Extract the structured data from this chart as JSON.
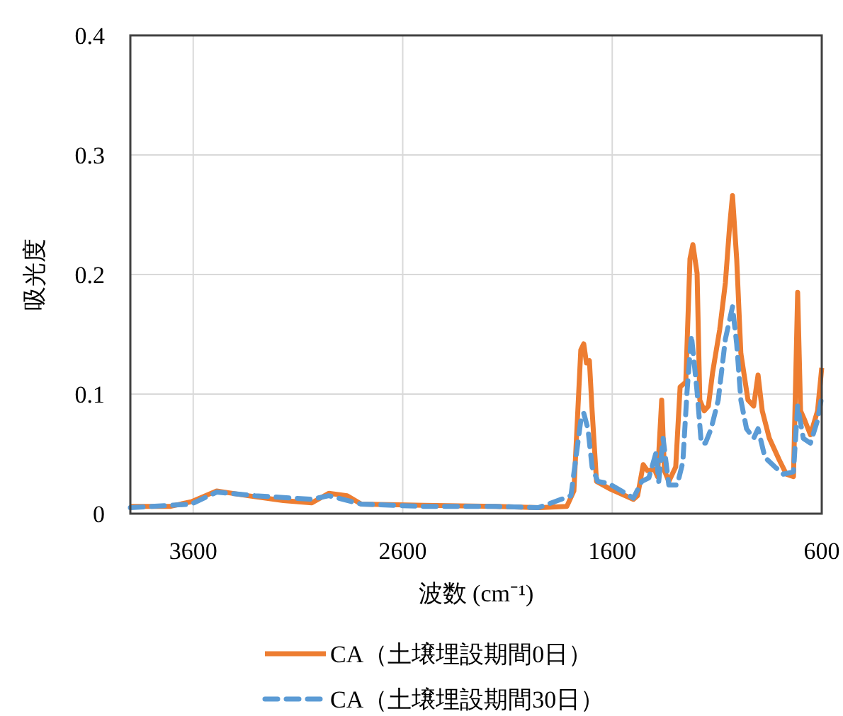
{
  "chart_data": {
    "type": "line",
    "xlabel": "波数 (cm⁻¹)",
    "ylabel": "吸光度",
    "xlim": [
      3900,
      600
    ],
    "xticks": [
      3600,
      2600,
      1600,
      600
    ],
    "ylim": [
      0,
      0.4
    ],
    "yticks": [
      0,
      0.1,
      0.2,
      0.3,
      0.4
    ],
    "grid": true,
    "legend": "bottom",
    "series": [
      {
        "name": "CA（土壌埋設期間0日）",
        "color": "#ed7d31",
        "line_style": "solid",
        "x": [
          3900,
          3711,
          3609,
          3488,
          3339,
          3170,
          3034,
          2953,
          2865,
          2798,
          2494,
          2155,
          1953,
          1817,
          1783,
          1750,
          1736,
          1723,
          1709,
          1696,
          1675,
          1614,
          1499,
          1479,
          1452,
          1432,
          1398,
          1384,
          1364,
          1351,
          1330,
          1297,
          1276,
          1249,
          1229,
          1215,
          1195,
          1182,
          1161,
          1141,
          1121,
          1087,
          1060,
          1040,
          1026,
          1006,
          986,
          952,
          925,
          904,
          884,
          850,
          803,
          769,
          735,
          715,
          701,
          681,
          654,
          620,
          600
        ],
        "values": [
          0.006,
          0.006,
          0.01,
          0.019,
          0.015,
          0.011,
          0.009,
          0.017,
          0.015,
          0.008,
          0.007,
          0.006,
          0.005,
          0.006,
          0.019,
          0.137,
          0.142,
          0.126,
          0.128,
          0.086,
          0.027,
          0.021,
          0.012,
          0.015,
          0.041,
          0.036,
          0.037,
          0.031,
          0.095,
          0.036,
          0.027,
          0.039,
          0.106,
          0.11,
          0.213,
          0.225,
          0.201,
          0.095,
          0.086,
          0.09,
          0.118,
          0.154,
          0.193,
          0.24,
          0.266,
          0.213,
          0.134,
          0.095,
          0.09,
          0.116,
          0.086,
          0.063,
          0.045,
          0.033,
          0.031,
          0.185,
          0.086,
          0.078,
          0.066,
          0.086,
          0.122
        ]
      },
      {
        "name": "CA（土壌埋設期間30日）",
        "color": "#5b9bd5",
        "line_style": "dashed",
        "x": [
          3900,
          3609,
          3488,
          3305,
          3034,
          2953,
          2798,
          2494,
          2155,
          1953,
          1797,
          1750,
          1736,
          1716,
          1696,
          1669,
          1614,
          1499,
          1459,
          1425,
          1391,
          1378,
          1357,
          1330,
          1290,
          1263,
          1243,
          1222,
          1195,
          1175,
          1155,
          1128,
          1094,
          1060,
          1026,
          1006,
          986,
          959,
          925,
          904,
          871,
          823,
          783,
          735,
          715,
          688,
          654,
          620,
          600
        ],
        "values": [
          0.005,
          0.008,
          0.018,
          0.015,
          0.012,
          0.015,
          0.008,
          0.006,
          0.006,
          0.005,
          0.015,
          0.078,
          0.084,
          0.071,
          0.039,
          0.027,
          0.025,
          0.013,
          0.027,
          0.03,
          0.051,
          0.027,
          0.063,
          0.024,
          0.024,
          0.043,
          0.102,
          0.149,
          0.102,
          0.059,
          0.059,
          0.071,
          0.095,
          0.146,
          0.173,
          0.142,
          0.095,
          0.071,
          0.063,
          0.071,
          0.047,
          0.039,
          0.033,
          0.035,
          0.09,
          0.063,
          0.059,
          0.078,
          0.098
        ]
      }
    ]
  }
}
